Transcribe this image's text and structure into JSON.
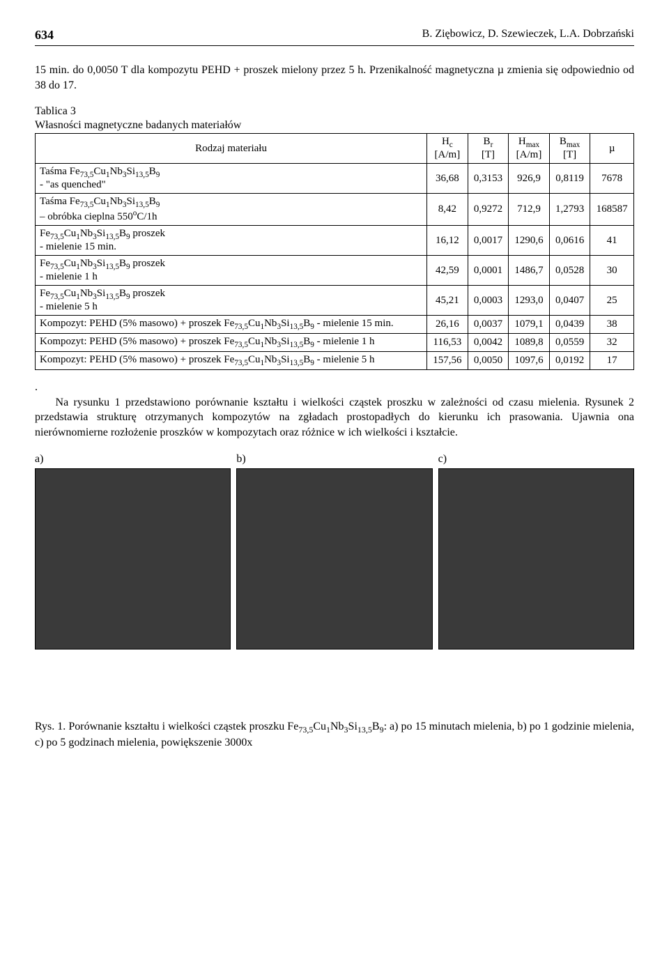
{
  "page": {
    "number": "634",
    "authors": "B. Ziębowicz, D. Szewieczek, L.A. Dobrzański"
  },
  "para1": "15 min. do 0,0050 T dla kompozytu PEHD + proszek mielony przez 5 h. Przenikalność magnetyczna µ zmienia się odpowiednio od 38 do 17.",
  "table": {
    "caption_line1": "Tablica 3",
    "caption_line2": "Własności magnetyczne badanych materiałów",
    "headers": {
      "c0": "Rodzaj materiału",
      "c1a": "Hc",
      "c1b": "[A/m]",
      "c2a": "Br",
      "c2b": "[T]",
      "c3a": "Hmax",
      "c3b": "[A/m]",
      "c4a": "Bmax",
      "c4b": "[T]",
      "c5": "µ"
    },
    "rows": [
      {
        "label": "Taśma Fe73,5Cu1Nb3Si13,5B9 - \"as quenched\"",
        "v": [
          "36,68",
          "0,3153",
          "926,9",
          "0,8119",
          "7678"
        ]
      },
      {
        "label": "Taśma Fe73,5Cu1Nb3Si13,5B9 – obróbka cieplna 550°C/1h",
        "v": [
          "8,42",
          "0,9272",
          "712,9",
          "1,2793",
          "168587"
        ]
      },
      {
        "label": "Fe73,5Cu1Nb3Si13,5B9 proszek - mielenie 15 min.",
        "v": [
          "16,12",
          "0,0017",
          "1290,6",
          "0,0616",
          "41"
        ]
      },
      {
        "label": "Fe73,5Cu1Nb3Si13,5B9 proszek - mielenie 1 h",
        "v": [
          "42,59",
          "0,0001",
          "1486,7",
          "0,0528",
          "30"
        ]
      },
      {
        "label": "Fe73,5Cu1Nb3Si13,5B9 proszek - mielenie 5 h",
        "v": [
          "45,21",
          "0,0003",
          "1293,0",
          "0,0407",
          "25"
        ]
      },
      {
        "label": "Kompozyt: PEHD (5% masowo) + proszek Fe73,5Cu1Nb3Si13,5B9 - mielenie 15 min.",
        "v": [
          "26,16",
          "0,0037",
          "1079,1",
          "0,0439",
          "38"
        ]
      },
      {
        "label": "Kompozyt: PEHD (5% masowo) + proszek Fe73,5Cu1Nb3Si13,5B9 - mielenie 1 h",
        "v": [
          "116,53",
          "0,0042",
          "1089,8",
          "0,0559",
          "32"
        ]
      },
      {
        "label": "Kompozyt: PEHD (5% masowo) + proszek Fe73,5Cu1Nb3Si13,5B9 - mielenie 5 h",
        "v": [
          "157,56",
          "0,0050",
          "1097,6",
          "0,0192",
          "17"
        ]
      }
    ]
  },
  "para2_prefix": ".",
  "para2_indent": "    ",
  "para2": "Na rysunku 1 przedstawiono porównanie kształtu i wielkości cząstek proszku w zależności od czasu mielenia. Rysunek 2 przedstawia strukturę otrzymanych kompozytów na zgładach prostopadłych do kierunku ich prasowania. Ujawnia ona nierównomierne rozłożenie proszków w kompozytach oraz różnice w ich wielkości i kształcie.",
  "figure": {
    "labels": {
      "a": "a)",
      "b": "b)",
      "c": "c)"
    },
    "placeholder_bg": "#3a3a3a",
    "caption": "Rys. 1. Porównanie kształtu i wielkości cząstek proszku Fe73,5Cu1Nb3Si13,5B9: a) po 15 minutach mielenia, b) po 1 godzinie mielenia, c) po 5 godzinach mielenia, powiększenie 3000x"
  }
}
